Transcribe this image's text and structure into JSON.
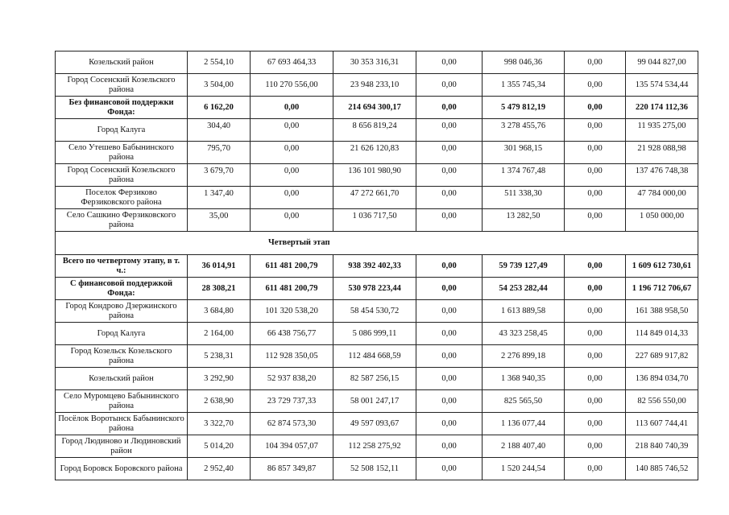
{
  "rows_top": [
    {
      "name": "Козельский район",
      "vals": [
        "2 554,10",
        "67 693 464,33",
        "30 353 316,31",
        "0,00",
        "998 046,36",
        "0,00",
        "99 044 827,00"
      ],
      "bold": false,
      "top": false
    },
    {
      "name": "Город Сосенский Козельского района",
      "vals": [
        "3 504,00",
        "110 270 556,00",
        "23 948 233,10",
        "0,00",
        "1 355 745,34",
        "0,00",
        "135 574 534,44"
      ],
      "bold": false,
      "top": false
    },
    {
      "name": "Без финансовой поддержки Фонда:",
      "vals": [
        "6 162,20",
        "0,00",
        "214 694 300,17",
        "0,00",
        "5 479 812,19",
        "0,00",
        "220 174 112,36"
      ],
      "bold": true,
      "top": false
    },
    {
      "name": "Город Калуга",
      "vals": [
        "304,40",
        "0,00",
        "8 656 819,24",
        "0,00",
        "3 278 455,76",
        "0,00",
        "11 935 275,00"
      ],
      "bold": false,
      "top": true
    },
    {
      "name": "Село Утешево Бабынинского района",
      "vals": [
        "795,70",
        "0,00",
        "21 626 120,83",
        "0,00",
        "301 968,15",
        "0,00",
        "21 928 088,98"
      ],
      "bold": false,
      "top": true
    },
    {
      "name": "Город Сосенский Козельского района",
      "vals": [
        "3 679,70",
        "0,00",
        "136 101 980,90",
        "0,00",
        "1 374 767,48",
        "0,00",
        "137 476 748,38"
      ],
      "bold": false,
      "top": true
    },
    {
      "name": "Поселок Ферзиково Ферзиковского района",
      "vals": [
        "1 347,40",
        "0,00",
        "47 272 661,70",
        "0,00",
        "511 338,30",
        "0,00",
        "47 784 000,00"
      ],
      "bold": false,
      "top": true
    },
    {
      "name": "Село Сашкино Ферзиковского района",
      "vals": [
        "35,00",
        "0,00",
        "1 036 717,50",
        "0,00",
        "13 282,50",
        "0,00",
        "1 050 000,00"
      ],
      "bold": false,
      "top": true
    }
  ],
  "section_title": "Четвертый этап",
  "rows_bottom": [
    {
      "name": "Всего по четвертому этапу, в т. ч.:",
      "vals": [
        "36 014,91",
        "611 481 200,79",
        "938 392 402,33",
        "0,00",
        "59 739 127,49",
        "0,00",
        "1 609 612 730,61"
      ],
      "bold": true,
      "top": false
    },
    {
      "name": "С финансовой поддержкой Фонда:",
      "vals": [
        "28 308,21",
        "611 481 200,79",
        "530 978 223,44",
        "0,00",
        "54 253 282,44",
        "0,00",
        "1 196 712 706,67"
      ],
      "bold": true,
      "top": false
    },
    {
      "name": "Город Кондрово Дзержинского района",
      "vals": [
        "3 684,80",
        "101 320 538,20",
        "58 454 530,72",
        "0,00",
        "1 613 889,58",
        "0,00",
        "161 388 958,50"
      ],
      "bold": false,
      "top": false
    },
    {
      "name": "Город Калуга",
      "vals": [
        "2 164,00",
        "66 438 756,77",
        "5 086 999,11",
        "0,00",
        "43 323 258,45",
        "0,00",
        "114 849 014,33"
      ],
      "bold": false,
      "top": false
    },
    {
      "name": "Город Козельск Козельского района",
      "vals": [
        "5 238,31",
        "112 928 350,05",
        "112 484 668,59",
        "0,00",
        "2 276 899,18",
        "0,00",
        "227 689 917,82"
      ],
      "bold": false,
      "top": false
    },
    {
      "name": "Козельский район",
      "vals": [
        "3 292,90",
        "52 937 838,20",
        "82 587 256,15",
        "0,00",
        "1 368 940,35",
        "0,00",
        "136 894 034,70"
      ],
      "bold": false,
      "top": false
    },
    {
      "name": "Село Муромцево Бабынинского района",
      "vals": [
        "2 638,90",
        "23 729 737,33",
        "58 001 247,17",
        "0,00",
        "825 565,50",
        "0,00",
        "82 556 550,00"
      ],
      "bold": false,
      "top": false
    },
    {
      "name": "Посёлок Воротынск Бабынинского района",
      "vals": [
        "3 322,70",
        "62 874 573,30",
        "49 597 093,67",
        "0,00",
        "1 136 077,44",
        "0,00",
        "113 607 744,41"
      ],
      "bold": false,
      "top": false
    },
    {
      "name": "Город Людиново и Людиновский район",
      "vals": [
        "5 014,20",
        "104 394 057,07",
        "112 258 275,92",
        "0,00",
        "2 188 407,40",
        "0,00",
        "218 840 740,39"
      ],
      "bold": false,
      "top": false
    },
    {
      "name": "Город Боровск Боровского района",
      "vals": [
        "2 952,40",
        "86 857 349,87",
        "52 508 152,11",
        "0,00",
        "1 520 244,54",
        "0,00",
        "140 885 746,52"
      ],
      "bold": false,
      "top": false
    }
  ]
}
